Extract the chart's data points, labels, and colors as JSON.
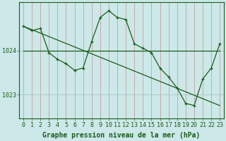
{
  "bg_color": "#cce8e8",
  "line_color": "#1a5c1a",
  "xlabel": "Graphe pression niveau de la mer (hPa)",
  "xlabel_color": "#1a5c1a",
  "ylabel_color": "#1a5c1a",
  "ytick_labels": [
    "1023",
    "1024"
  ],
  "ytick_values": [
    1023,
    1024
  ],
  "ylim": [
    1022.45,
    1025.1
  ],
  "xlim": [
    -0.5,
    23.5
  ],
  "xticks": [
    0,
    1,
    2,
    3,
    4,
    5,
    6,
    7,
    8,
    9,
    10,
    11,
    12,
    13,
    14,
    15,
    16,
    17,
    18,
    19,
    20,
    21,
    22,
    23
  ],
  "series1_x": [
    0,
    1,
    2,
    3,
    4,
    5,
    6,
    7,
    8,
    9,
    10,
    11,
    12,
    13,
    14,
    15,
    16,
    17,
    18,
    19,
    20,
    21,
    22,
    23
  ],
  "series1_y": [
    1024.55,
    1024.45,
    1024.5,
    1023.95,
    1023.8,
    1023.7,
    1023.55,
    1023.6,
    1024.2,
    1024.75,
    1024.9,
    1024.75,
    1024.7,
    1024.15,
    1024.05,
    1023.95,
    1023.6,
    1023.4,
    1023.15,
    1022.8,
    1022.75,
    1023.35,
    1023.6,
    1024.15
  ],
  "series2_x": [
    0,
    14,
    19,
    23
  ],
  "series2_y": [
    1024.0,
    1024.0,
    1024.0,
    1024.0
  ],
  "series3_x": [
    0,
    23
  ],
  "series3_y": [
    1024.55,
    1022.75
  ],
  "tick_fontsize": 6.0,
  "xlabel_fontsize": 7.0,
  "vgrid_color": "#c8a0a0",
  "hgrid_color": "#a8c8c8"
}
